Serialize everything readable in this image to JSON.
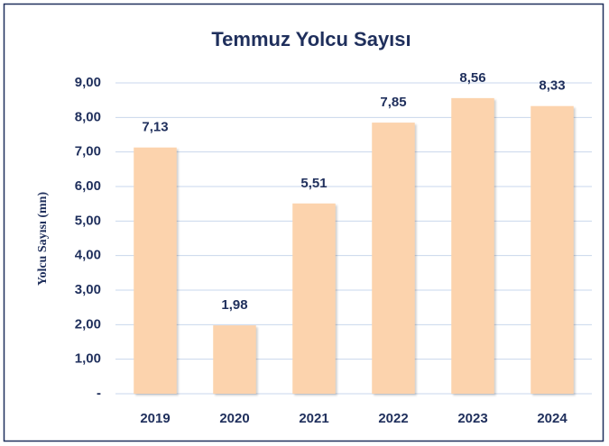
{
  "chart_data": {
    "type": "bar",
    "title": "Temmuz Yolcu Sayısı",
    "y_label": "Yolcu Sayısı (mn)",
    "categories": [
      "2019",
      "2020",
      "2021",
      "2022",
      "2023",
      "2024"
    ],
    "values": [
      7.13,
      1.98,
      5.51,
      7.85,
      8.56,
      8.33
    ],
    "value_labels": [
      "7,13",
      "1,98",
      "5,51",
      "7,85",
      "8,56",
      "8,33"
    ],
    "color": "#fcd3ad",
    "ylim": [
      0,
      9
    ],
    "yticks": [
      {
        "value": 0,
        "label": "-"
      },
      {
        "value": 1,
        "label": "1,00"
      },
      {
        "value": 2,
        "label": "2,00"
      },
      {
        "value": 3,
        "label": "3,00"
      },
      {
        "value": 4,
        "label": "4,00"
      },
      {
        "value": 5,
        "label": "5,00"
      },
      {
        "value": 6,
        "label": "6,00"
      },
      {
        "value": 7,
        "label": "7,00"
      },
      {
        "value": 8,
        "label": "8,00"
      },
      {
        "value": 9,
        "label": "9,00"
      }
    ],
    "grid": true
  }
}
